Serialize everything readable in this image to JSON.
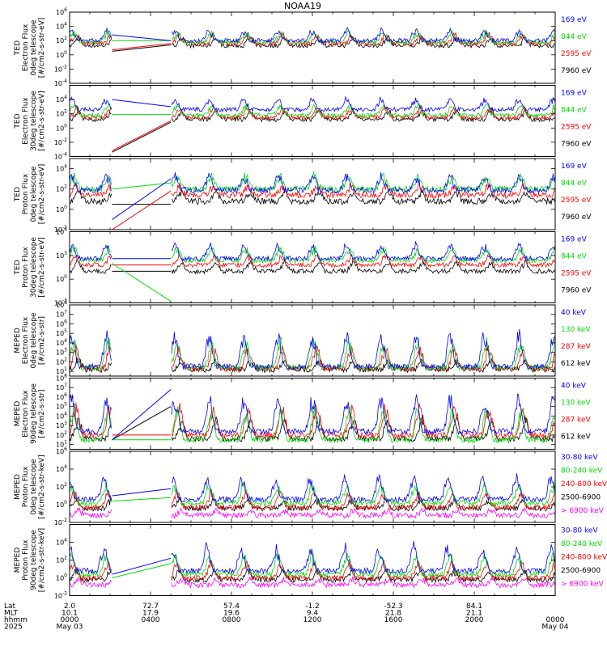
{
  "chart_data": {
    "type": "line",
    "title": "NOAA19",
    "x": {
      "range_hours": [
        0,
        24
      ],
      "tick_hours": [
        0,
        4,
        8,
        12,
        16,
        20,
        24
      ],
      "row_labels": [
        "Lat",
        "MLT",
        "hhmm",
        "2025"
      ],
      "rows": {
        "Lat": [
          "2.0",
          "72.7",
          "57.4",
          "-1.2",
          "-52.3",
          "84.1",
          ""
        ],
        "MLT": [
          "10.1",
          "17.9",
          "19.6",
          "9.4",
          "21.8",
          "21.1",
          ""
        ],
        "hhmm": [
          "0000",
          "0400",
          "0800",
          "1200",
          "1600",
          "2000",
          "0000"
        ],
        "2025": [
          "May 03",
          "",
          "",
          "",
          "",
          "",
          "May 04"
        ]
      },
      "data_gap_hours": [
        2.1,
        5.0
      ]
    },
    "panels": [
      {
        "ylabel": [
          "TED",
          "Electron Flux",
          "0deg telescope",
          "[#/cm2-s-str-eV]"
        ],
        "ylim_exp": [
          -4,
          6
        ],
        "ticks": [
          {
            "base": "10",
            "exp": "6"
          },
          {
            "base": "10",
            "exp": "4"
          },
          {
            "base": "10",
            "exp": "2"
          },
          {
            "base": "10",
            "exp": "0"
          },
          {
            "base": "10",
            "exp": "-2"
          },
          {
            "base": "10",
            "exp": "-4"
          }
        ],
        "series": [
          {
            "name": "7960 eV",
            "color": "#000000",
            "level": 1.3,
            "amp": 1.2,
            "gap_start": 0.5,
            "gap_end": 1.4,
            "gap_slope": true
          },
          {
            "name": "2595 eV",
            "color": "#ff0000",
            "level": 1.6,
            "amp": 1.3,
            "gap_start": 0.7,
            "gap_end": 1.6,
            "gap_slope": true
          },
          {
            "name": "844 eV",
            "color": "#00dd00",
            "level": 1.8,
            "amp": 1.5,
            "gap_start": 2.0,
            "gap_end": 2.0,
            "gap_slope": false
          },
          {
            "name": "169 eV",
            "color": "#0000ff",
            "level": 2.0,
            "amp": 1.6,
            "gap_start": 2.8,
            "gap_end": 2.0,
            "gap_slope": false
          }
        ]
      },
      {
        "ylabel": [
          "TED",
          "Electron Flux",
          "30deg telescope",
          "[#/cm2-s-str-eV]"
        ],
        "ylim_exp": [
          -4,
          6
        ],
        "ticks": [
          {
            "base": "10",
            "exp": "4"
          },
          {
            "base": "10",
            "exp": "2"
          },
          {
            "base": "10",
            "exp": "0"
          },
          {
            "base": "10",
            "exp": "-2"
          },
          {
            "base": "10",
            "exp": "-4"
          }
        ],
        "series": [
          {
            "name": "7960 eV",
            "color": "#000000",
            "level": 1.2,
            "amp": 1.3,
            "gap_start": -3.4,
            "gap_end": 0.8,
            "gap_slope": true
          },
          {
            "name": "2595 eV",
            "color": "#ff0000",
            "level": 1.5,
            "amp": 1.4,
            "gap_start": -3.2,
            "gap_end": 1.0,
            "gap_slope": true
          },
          {
            "name": "844 eV",
            "color": "#00dd00",
            "level": 1.8,
            "amp": 1.5,
            "gap_start": 1.9,
            "gap_end": 1.9,
            "gap_slope": false
          },
          {
            "name": "169 eV",
            "color": "#0000ff",
            "level": 2.6,
            "amp": 1.6,
            "gap_start": 4.0,
            "gap_end": 3.0,
            "gap_slope": false
          }
        ]
      },
      {
        "ylabel": [
          "TED",
          "Proton Flux",
          "0deg telescope",
          "[#/cm2-s-str-eV]"
        ],
        "ylim_exp": [
          -2,
          5
        ],
        "ticks": [
          {
            "base": "10",
            "exp": "4"
          },
          {
            "base": "10",
            "exp": "2"
          },
          {
            "base": "10",
            "exp": "0"
          },
          {
            "base": "10",
            "exp": "-2"
          }
        ],
        "series": [
          {
            "name": "7960 eV",
            "color": "#000000",
            "level": 0.8,
            "amp": 1.0,
            "gap_start": 0.5,
            "gap_end": 0.5,
            "gap_slope": false
          },
          {
            "name": "2595 eV",
            "color": "#ff0000",
            "level": 1.4,
            "amp": 1.0,
            "gap_start": -2.0,
            "gap_end": 1.8,
            "gap_slope": true
          },
          {
            "name": "844 eV",
            "color": "#00dd00",
            "level": 2.0,
            "amp": 1.4,
            "gap_start": 2.0,
            "gap_end": 2.6,
            "gap_slope": true
          },
          {
            "name": "169 eV",
            "color": "#0000ff",
            "level": 1.9,
            "amp": 1.6,
            "gap_start": -1.0,
            "gap_end": 3.0,
            "gap_slope": true
          }
        ]
      },
      {
        "ylabel": [
          "TED",
          "Proton Flux",
          "30deg telescope",
          "[#/cm2-s-str-eV]"
        ],
        "ylim_exp": [
          -3,
          6
        ],
        "ticks": [
          {
            "base": "10",
            "exp": "6"
          },
          {
            "base": "10",
            "exp": "3"
          },
          {
            "base": "10",
            "exp": "0"
          },
          {
            "base": "10",
            "exp": "-3"
          }
        ],
        "series": [
          {
            "name": "7960 eV",
            "color": "#000000",
            "level": 1.0,
            "amp": 1.2,
            "gap_start": 1.0,
            "gap_end": 1.0,
            "gap_slope": false
          },
          {
            "name": "2595 eV",
            "color": "#ff0000",
            "level": 1.8,
            "amp": 1.2,
            "gap_start": 1.8,
            "gap_end": 1.8,
            "gap_slope": false
          },
          {
            "name": "844 eV",
            "color": "#00dd00",
            "level": 2.4,
            "amp": 1.6,
            "gap_start": 2.0,
            "gap_end": -2.8,
            "gap_slope": true
          },
          {
            "name": "169 eV",
            "color": "#0000ff",
            "level": 2.6,
            "amp": 1.8,
            "gap_start": 2.6,
            "gap_end": 2.6,
            "gap_slope": false
          }
        ]
      },
      {
        "ylabel": [
          "MEPED",
          "Electron Flux",
          "0deg telescope",
          "[#/cm2-s-str]"
        ],
        "ylim_exp": [
          0.5,
          8
        ],
        "ticks": [
          {
            "base": "10",
            "exp": "8"
          },
          {
            "base": "10",
            "exp": "7"
          },
          {
            "base": "10",
            "exp": "6"
          },
          {
            "base": "10",
            "exp": "5"
          },
          {
            "base": "10",
            "exp": "4"
          },
          {
            "base": "10",
            "exp": "3"
          },
          {
            "base": "10",
            "exp": "2"
          },
          {
            "base": "10",
            "exp": "1"
          }
        ],
        "series": [
          {
            "name": "612 keV",
            "color": "#000000",
            "level": 1.2,
            "amp": 1.0,
            "gap_start": null,
            "gap_end": null,
            "gap_slope": false
          },
          {
            "name": "287 keV",
            "color": "#ff0000",
            "level": 1.3,
            "amp": 2.4,
            "gap_start": null,
            "gap_end": null,
            "gap_slope": false
          },
          {
            "name": "130 keV",
            "color": "#00dd00",
            "level": 1.4,
            "amp": 3.0,
            "gap_start": null,
            "gap_end": null,
            "gap_slope": false
          },
          {
            "name": "40 keV",
            "color": "#0000ff",
            "level": 1.5,
            "amp": 3.6,
            "gap_start": null,
            "gap_end": null,
            "gap_slope": false
          }
        ]
      },
      {
        "ylabel": [
          "MEPED",
          "Electron Flux",
          "90deg telescope",
          "[#/cm2-s-str]"
        ],
        "ylim_exp": [
          0.5,
          8
        ],
        "ticks": [
          {
            "base": "10",
            "exp": "8"
          },
          {
            "base": "10",
            "exp": "7"
          },
          {
            "base": "10",
            "exp": "6"
          },
          {
            "base": "10",
            "exp": "5"
          },
          {
            "base": "10",
            "exp": "4"
          },
          {
            "base": "10",
            "exp": "3"
          },
          {
            "base": "10",
            "exp": "2"
          },
          {
            "base": "10",
            "exp": "1"
          }
        ],
        "series": [
          {
            "name": "612 keV",
            "color": "#000000",
            "level": 1.6,
            "amp": 2.2,
            "gap_start": 1.5,
            "gap_end": 5.0,
            "gap_slope": true
          },
          {
            "name": "287 keV",
            "color": "#ff0000",
            "level": 2.0,
            "amp": 3.2,
            "gap_start": 2.0,
            "gap_end": 2.0,
            "gap_slope": false
          },
          {
            "name": "130 keV",
            "color": "#00dd00",
            "level": 1.5,
            "amp": 3.4,
            "gap_start": 1.5,
            "gap_end": 1.5,
            "gap_slope": false
          },
          {
            "name": "40 keV",
            "color": "#0000ff",
            "level": 2.4,
            "amp": 3.8,
            "gap_start": 1.5,
            "gap_end": 6.8,
            "gap_slope": true
          }
        ]
      },
      {
        "ylabel": [
          "MEPED",
          "Proton Flux",
          "0deg telescope",
          "[#/cm2-s-str-keV]"
        ],
        "ylim_exp": [
          -2,
          6
        ],
        "ticks": [
          {
            "base": "10",
            "exp": "6"
          },
          {
            "base": "10",
            "exp": "4"
          },
          {
            "base": "10",
            "exp": "2"
          },
          {
            "base": "10",
            "exp": "0"
          },
          {
            "base": "10",
            "exp": "-2"
          }
        ],
        "series": [
          {
            "name": "> 6900 keV",
            "color": "#ff00ff",
            "level": -1.2,
            "amp": 0.6,
            "gap_start": null,
            "gap_end": null,
            "gap_slope": false
          },
          {
            "name": "2500-6900",
            "color": "#000000",
            "level": -0.4,
            "amp": 1.0,
            "gap_start": null,
            "gap_end": null,
            "gap_slope": false
          },
          {
            "name": "240-800 keV",
            "color": "#ff0000",
            "level": -0.3,
            "amp": 1.8,
            "gap_start": null,
            "gap_end": null,
            "gap_slope": false
          },
          {
            "name": "80-240 keV",
            "color": "#00dd00",
            "level": 0.2,
            "amp": 2.2,
            "gap_start": 0.4,
            "gap_end": 0.8,
            "gap_slope": true
          },
          {
            "name": "30-80 keV",
            "color": "#0000ff",
            "level": 0.6,
            "amp": 2.6,
            "gap_start": 1.0,
            "gap_end": 1.8,
            "gap_slope": true
          }
        ]
      },
      {
        "ylabel": [
          "MEPED",
          "Proton Flux",
          "90deg telescope",
          "[#/cm2-s-str-keV]"
        ],
        "ylim_exp": [
          -2,
          6
        ],
        "ticks": [
          {
            "base": "10",
            "exp": "4"
          },
          {
            "base": "10",
            "exp": "2"
          },
          {
            "base": "10",
            "exp": "0"
          },
          {
            "base": "10",
            "exp": "-2"
          }
        ],
        "series": [
          {
            "name": "> 6900 keV",
            "color": "#ff00ff",
            "level": -0.8,
            "amp": 0.7,
            "gap_start": null,
            "gap_end": null,
            "gap_slope": false
          },
          {
            "name": "2500-6900",
            "color": "#000000",
            "level": -0.2,
            "amp": 1.1,
            "gap_start": null,
            "gap_end": null,
            "gap_slope": false
          },
          {
            "name": "240-800 keV",
            "color": "#ff0000",
            "level": 0.0,
            "amp": 1.9,
            "gap_start": null,
            "gap_end": null,
            "gap_slope": false
          },
          {
            "name": "80-240 keV",
            "color": "#00dd00",
            "level": 0.4,
            "amp": 2.3,
            "gap_start": 0.0,
            "gap_end": 1.6,
            "gap_slope": true
          },
          {
            "name": "30-80 keV",
            "color": "#0000ff",
            "level": 0.8,
            "amp": 2.8,
            "gap_start": 0.4,
            "gap_end": 2.2,
            "gap_slope": true
          }
        ]
      }
    ]
  }
}
